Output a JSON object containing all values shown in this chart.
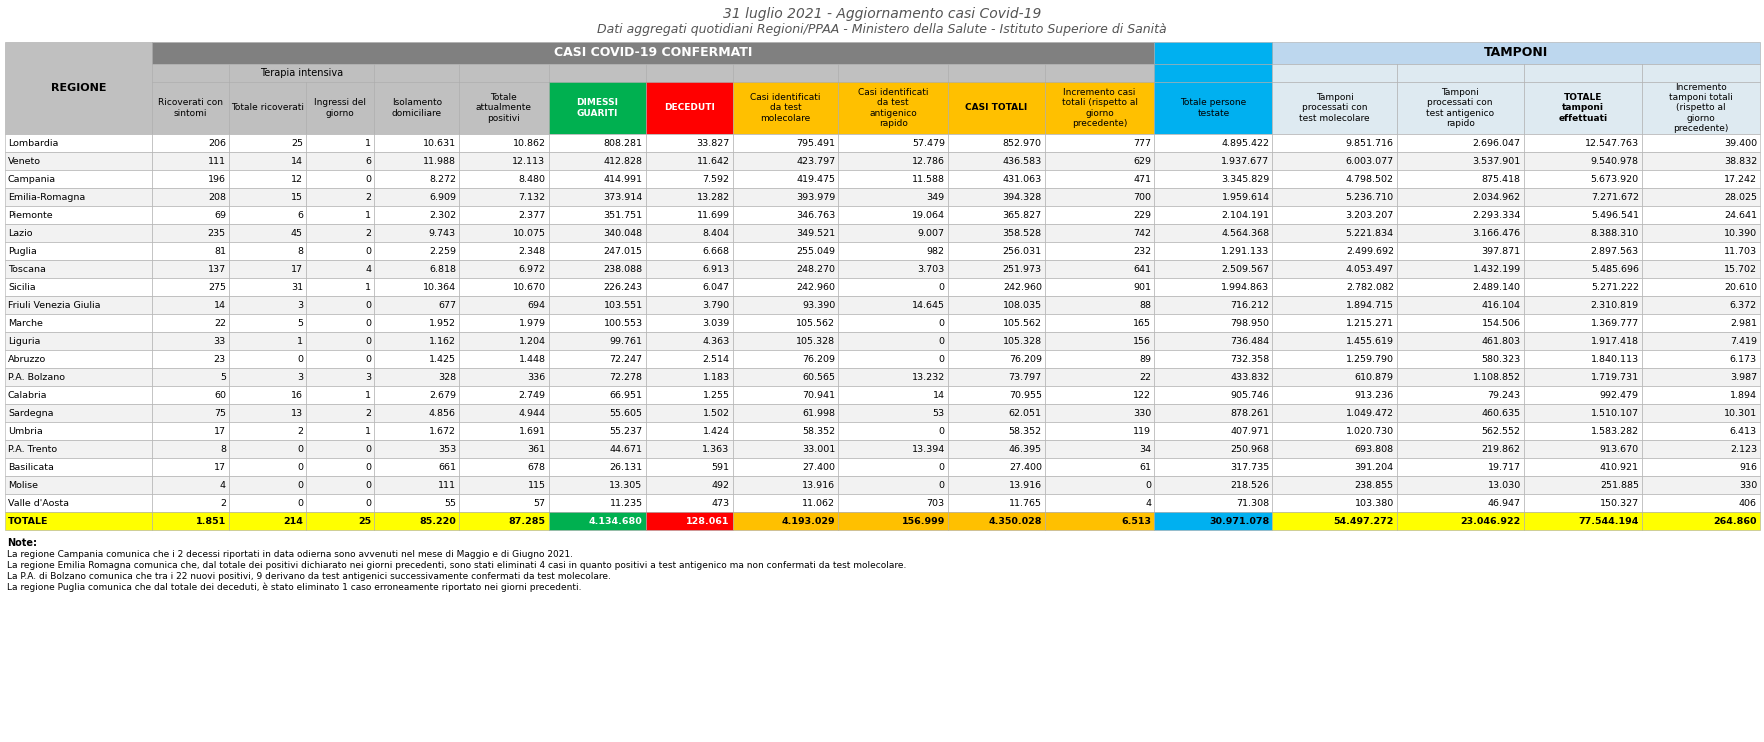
{
  "title1": "31 luglio 2021 - Aggiornamento casi Covid-19",
  "title2": "Dati aggregati quotidiani Regioni/PPAA - Ministero della Salute - Istituto Superiore di Sanità",
  "note_title": "Note:",
  "notes": [
    "La regione Campania comunica che i 2 decessi riportati in data odierna sono avvenuti nel mese di Maggio e di Giugno 2021.",
    "La regione Emilia Romagna comunica che, dal totale dei positivi dichiarato nei giorni precedenti, sono stati eliminati 4 casi in quanto positivi a test antigenico ma non confermati da test molecolare.",
    "La P.A. di Bolzano comunica che tra i 22 nuovi positivi, 9 derivano da test antigenici successivamente confermati da test molecolare.",
    "La regione Puglia comunica che dal totale dei deceduti, è stato eliminato 1 caso erroneamente riportato nei giorni precedenti."
  ],
  "rows": [
    [
      "Lombardia",
      "206",
      "25",
      "1",
      "10.631",
      "10.862",
      "808.281",
      "33.827",
      "795.491",
      "57.479",
      "852.970",
      "777",
      "4.895.422",
      "9.851.716",
      "2.696.047",
      "12.547.763",
      "39.400"
    ],
    [
      "Veneto",
      "111",
      "14",
      "6",
      "11.988",
      "12.113",
      "412.828",
      "11.642",
      "423.797",
      "12.786",
      "436.583",
      "629",
      "1.937.677",
      "6.003.077",
      "3.537.901",
      "9.540.978",
      "38.832"
    ],
    [
      "Campania",
      "196",
      "12",
      "0",
      "8.272",
      "8.480",
      "414.991",
      "7.592",
      "419.475",
      "11.588",
      "431.063",
      "471",
      "3.345.829",
      "4.798.502",
      "875.418",
      "5.673.920",
      "17.242"
    ],
    [
      "Emilia-Romagna",
      "208",
      "15",
      "2",
      "6.909",
      "7.132",
      "373.914",
      "13.282",
      "393.979",
      "349",
      "394.328",
      "700",
      "1.959.614",
      "5.236.710",
      "2.034.962",
      "7.271.672",
      "28.025"
    ],
    [
      "Piemonte",
      "69",
      "6",
      "1",
      "2.302",
      "2.377",
      "351.751",
      "11.699",
      "346.763",
      "19.064",
      "365.827",
      "229",
      "2.104.191",
      "3.203.207",
      "2.293.334",
      "5.496.541",
      "24.641"
    ],
    [
      "Lazio",
      "235",
      "45",
      "2",
      "9.743",
      "10.075",
      "340.048",
      "8.404",
      "349.521",
      "9.007",
      "358.528",
      "742",
      "4.564.368",
      "5.221.834",
      "3.166.476",
      "8.388.310",
      "10.390"
    ],
    [
      "Puglia",
      "81",
      "8",
      "0",
      "2.259",
      "2.348",
      "247.015",
      "6.668",
      "255.049",
      "982",
      "256.031",
      "232",
      "1.291.133",
      "2.499.692",
      "397.871",
      "2.897.563",
      "11.703"
    ],
    [
      "Toscana",
      "137",
      "17",
      "4",
      "6.818",
      "6.972",
      "238.088",
      "6.913",
      "248.270",
      "3.703",
      "251.973",
      "641",
      "2.509.567",
      "4.053.497",
      "1.432.199",
      "5.485.696",
      "15.702"
    ],
    [
      "Sicilia",
      "275",
      "31",
      "1",
      "10.364",
      "10.670",
      "226.243",
      "6.047",
      "242.960",
      "0",
      "242.960",
      "901",
      "1.994.863",
      "2.782.082",
      "2.489.140",
      "5.271.222",
      "20.610"
    ],
    [
      "Friuli Venezia Giulia",
      "14",
      "3",
      "0",
      "677",
      "694",
      "103.551",
      "3.790",
      "93.390",
      "14.645",
      "108.035",
      "88",
      "716.212",
      "1.894.715",
      "416.104",
      "2.310.819",
      "6.372"
    ],
    [
      "Marche",
      "22",
      "5",
      "0",
      "1.952",
      "1.979",
      "100.553",
      "3.039",
      "105.562",
      "0",
      "105.562",
      "165",
      "798.950",
      "1.215.271",
      "154.506",
      "1.369.777",
      "2.981"
    ],
    [
      "Liguria",
      "33",
      "1",
      "0",
      "1.162",
      "1.204",
      "99.761",
      "4.363",
      "105.328",
      "0",
      "105.328",
      "156",
      "736.484",
      "1.455.619",
      "461.803",
      "1.917.418",
      "7.419"
    ],
    [
      "Abruzzo",
      "23",
      "0",
      "0",
      "1.425",
      "1.448",
      "72.247",
      "2.514",
      "76.209",
      "0",
      "76.209",
      "89",
      "732.358",
      "1.259.790",
      "580.323",
      "1.840.113",
      "6.173"
    ],
    [
      "P.A. Bolzano",
      "5",
      "3",
      "3",
      "328",
      "336",
      "72.278",
      "1.183",
      "60.565",
      "13.232",
      "73.797",
      "22",
      "433.832",
      "610.879",
      "1.108.852",
      "1.719.731",
      "3.987"
    ],
    [
      "Calabria",
      "60",
      "16",
      "1",
      "2.679",
      "2.749",
      "66.951",
      "1.255",
      "70.941",
      "14",
      "70.955",
      "122",
      "905.746",
      "913.236",
      "79.243",
      "992.479",
      "1.894"
    ],
    [
      "Sardegna",
      "75",
      "13",
      "2",
      "4.856",
      "4.944",
      "55.605",
      "1.502",
      "61.998",
      "53",
      "62.051",
      "330",
      "878.261",
      "1.049.472",
      "460.635",
      "1.510.107",
      "10.301"
    ],
    [
      "Umbria",
      "17",
      "2",
      "1",
      "1.672",
      "1.691",
      "55.237",
      "1.424",
      "58.352",
      "0",
      "58.352",
      "119",
      "407.971",
      "1.020.730",
      "562.552",
      "1.583.282",
      "6.413"
    ],
    [
      "P.A. Trento",
      "8",
      "0",
      "0",
      "353",
      "361",
      "44.671",
      "1.363",
      "33.001",
      "13.394",
      "46.395",
      "34",
      "250.968",
      "693.808",
      "219.862",
      "913.670",
      "2.123"
    ],
    [
      "Basilicata",
      "17",
      "0",
      "0",
      "661",
      "678",
      "26.131",
      "591",
      "27.400",
      "0",
      "27.400",
      "61",
      "317.735",
      "391.204",
      "19.717",
      "410.921",
      "916"
    ],
    [
      "Molise",
      "4",
      "0",
      "0",
      "111",
      "115",
      "13.305",
      "492",
      "13.916",
      "0",
      "13.916",
      "0",
      "218.526",
      "238.855",
      "13.030",
      "251.885",
      "330"
    ],
    [
      "Valle d'Aosta",
      "2",
      "0",
      "0",
      "55",
      "57",
      "11.235",
      "473",
      "11.062",
      "703",
      "11.765",
      "4",
      "71.308",
      "103.380",
      "46.947",
      "150.327",
      "406"
    ],
    [
      "TOTALE",
      "1.851",
      "214",
      "25",
      "85.220",
      "87.285",
      "4.134.680",
      "128.061",
      "4.193.029",
      "156.999",
      "4.350.028",
      "6.513",
      "30.971.078",
      "54.497.272",
      "23.046.922",
      "77.544.194",
      "264.860"
    ]
  ],
  "col_widths_raw": [
    118,
    62,
    62,
    55,
    68,
    72,
    78,
    70,
    85,
    88,
    78,
    88,
    95,
    100,
    102,
    95,
    95
  ],
  "header_bg": "#808080",
  "subheader_bg": "#C0C0C0",
  "terapia_bg": "#BFBFBF",
  "green_bg": "#00B050",
  "red_bg": "#FF0000",
  "gold_bg": "#FFC000",
  "blue_bright_bg": "#00B0F0",
  "blue_light_bg": "#BDD7EE",
  "blue_lighter_bg": "#DEEAF1",
  "row_even": "#FFFFFF",
  "row_odd": "#F2F2F2",
  "totale_bg": "#FFFF00",
  "border_color": "#AAAAAA"
}
